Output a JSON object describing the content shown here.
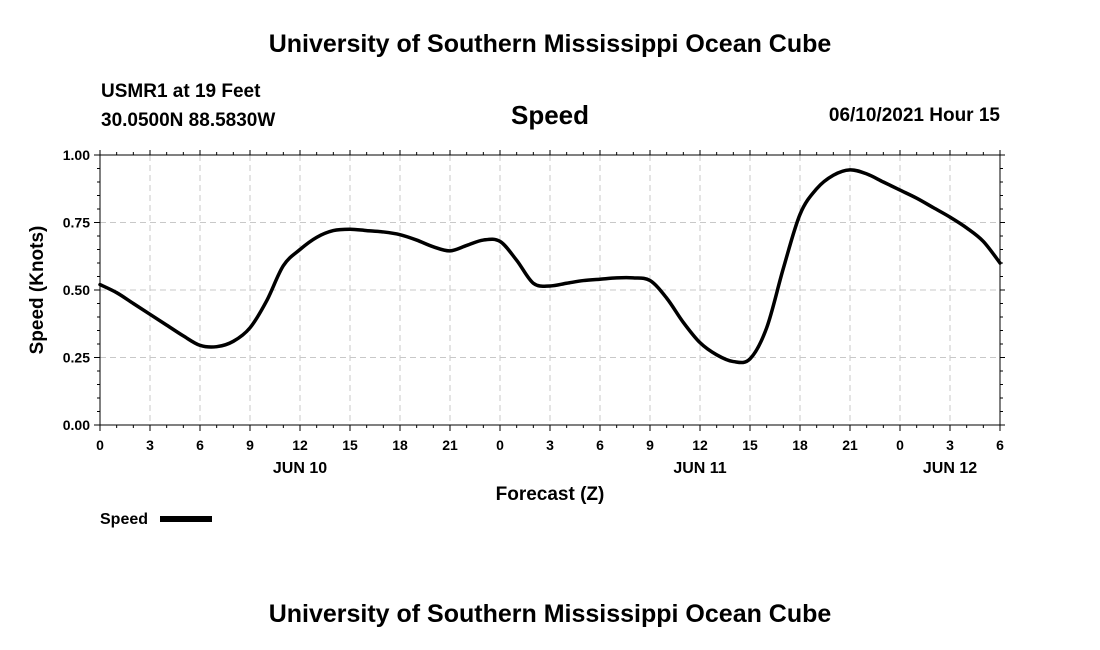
{
  "header": {
    "title": "University of Southern Mississippi Ocean Cube",
    "station_line1": "USMR1 at 19 Feet",
    "station_line2": "30.0500N  88.5830W",
    "variable": "Speed",
    "datetime": "06/10/2021 Hour 15"
  },
  "footer": {
    "title": "University of Southern Mississippi Ocean Cube"
  },
  "chart_data": {
    "type": "line",
    "xlabel": "Forecast (Z)",
    "ylabel": "Speed (Knots)",
    "xlim": [
      0,
      54
    ],
    "ylim": [
      0,
      1
    ],
    "x_ticks": [
      0,
      3,
      6,
      9,
      12,
      15,
      18,
      21,
      24,
      27,
      30,
      33,
      36,
      39,
      42,
      45,
      48,
      51,
      54
    ],
    "x_tick_labels": [
      "0",
      "3",
      "6",
      "9",
      "12",
      "15",
      "18",
      "21",
      "0",
      "3",
      "6",
      "9",
      "12",
      "15",
      "18",
      "21",
      "0",
      "3",
      "6"
    ],
    "y_ticks": [
      0,
      0.25,
      0.5,
      0.75,
      1.0
    ],
    "y_tick_labels": [
      "0.00",
      "0.25",
      "0.50",
      "0.75",
      "1.00"
    ],
    "date_labels": [
      {
        "x": 12,
        "label": "JUN 10"
      },
      {
        "x": 36,
        "label": "JUN 11"
      },
      {
        "x": 51,
        "label": "JUN 12"
      }
    ],
    "grid": true,
    "legend": {
      "position": "bottom-left",
      "label": "Speed"
    },
    "series": [
      {
        "name": "Speed",
        "color": "#000000",
        "x": [
          0,
          1,
          2,
          3,
          4,
          5,
          6,
          7,
          8,
          9,
          10,
          11,
          12,
          13,
          14,
          15,
          16,
          17,
          18,
          19,
          20,
          21,
          22,
          23,
          24,
          25,
          26,
          27,
          28,
          29,
          30,
          31,
          32,
          33,
          34,
          35,
          36,
          37,
          38,
          39,
          40,
          41,
          42,
          43,
          44,
          45,
          46,
          47,
          48,
          49,
          50,
          51,
          52,
          53,
          54
        ],
        "y": [
          0.52,
          0.49,
          0.45,
          0.41,
          0.37,
          0.33,
          0.295,
          0.29,
          0.31,
          0.36,
          0.46,
          0.59,
          0.65,
          0.695,
          0.72,
          0.725,
          0.72,
          0.715,
          0.705,
          0.685,
          0.66,
          0.645,
          0.665,
          0.685,
          0.68,
          0.61,
          0.525,
          0.515,
          0.525,
          0.535,
          0.54,
          0.545,
          0.545,
          0.535,
          0.47,
          0.38,
          0.305,
          0.26,
          0.235,
          0.245,
          0.36,
          0.58,
          0.78,
          0.875,
          0.925,
          0.945,
          0.93,
          0.9,
          0.87,
          0.84,
          0.805,
          0.77,
          0.73,
          0.68,
          0.6
        ]
      }
    ]
  }
}
